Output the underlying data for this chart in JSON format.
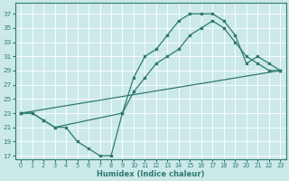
{
  "xlabel": "Humidex (Indice chaleur)",
  "bg_color": "#cce9ea",
  "grid_color": "#ffffff",
  "line_color": "#2d7a6e",
  "xlim": [
    -0.5,
    23.5
  ],
  "ylim": [
    16.5,
    38.5
  ],
  "yticks": [
    17,
    19,
    21,
    23,
    25,
    27,
    29,
    31,
    33,
    35,
    37
  ],
  "xticks": [
    0,
    1,
    2,
    3,
    4,
    5,
    6,
    7,
    8,
    9,
    10,
    11,
    12,
    13,
    14,
    15,
    16,
    17,
    18,
    19,
    20,
    21,
    22,
    23
  ],
  "line1_x": [
    0,
    1,
    2,
    3,
    4,
    5,
    6,
    7,
    8,
    9,
    10,
    11,
    12,
    13,
    14,
    15,
    16,
    17,
    18,
    19,
    20,
    21,
    22,
    23
  ],
  "line1_y": [
    23,
    23,
    22,
    21,
    21,
    19,
    18,
    17,
    17,
    23,
    28,
    31,
    32,
    34,
    36,
    37,
    37,
    37,
    36,
    34,
    30,
    31,
    30,
    29
  ],
  "line2_x": [
    0,
    1,
    2,
    3,
    9,
    10,
    11,
    12,
    13,
    14,
    15,
    16,
    17,
    18,
    19,
    20,
    21,
    22,
    23
  ],
  "line2_y": [
    23,
    23,
    22,
    21,
    23,
    26,
    28,
    30,
    31,
    32,
    34,
    35,
    36,
    35,
    33,
    31,
    30,
    29,
    29
  ],
  "line3_x": [
    0,
    23
  ],
  "line3_y": [
    23,
    29
  ]
}
